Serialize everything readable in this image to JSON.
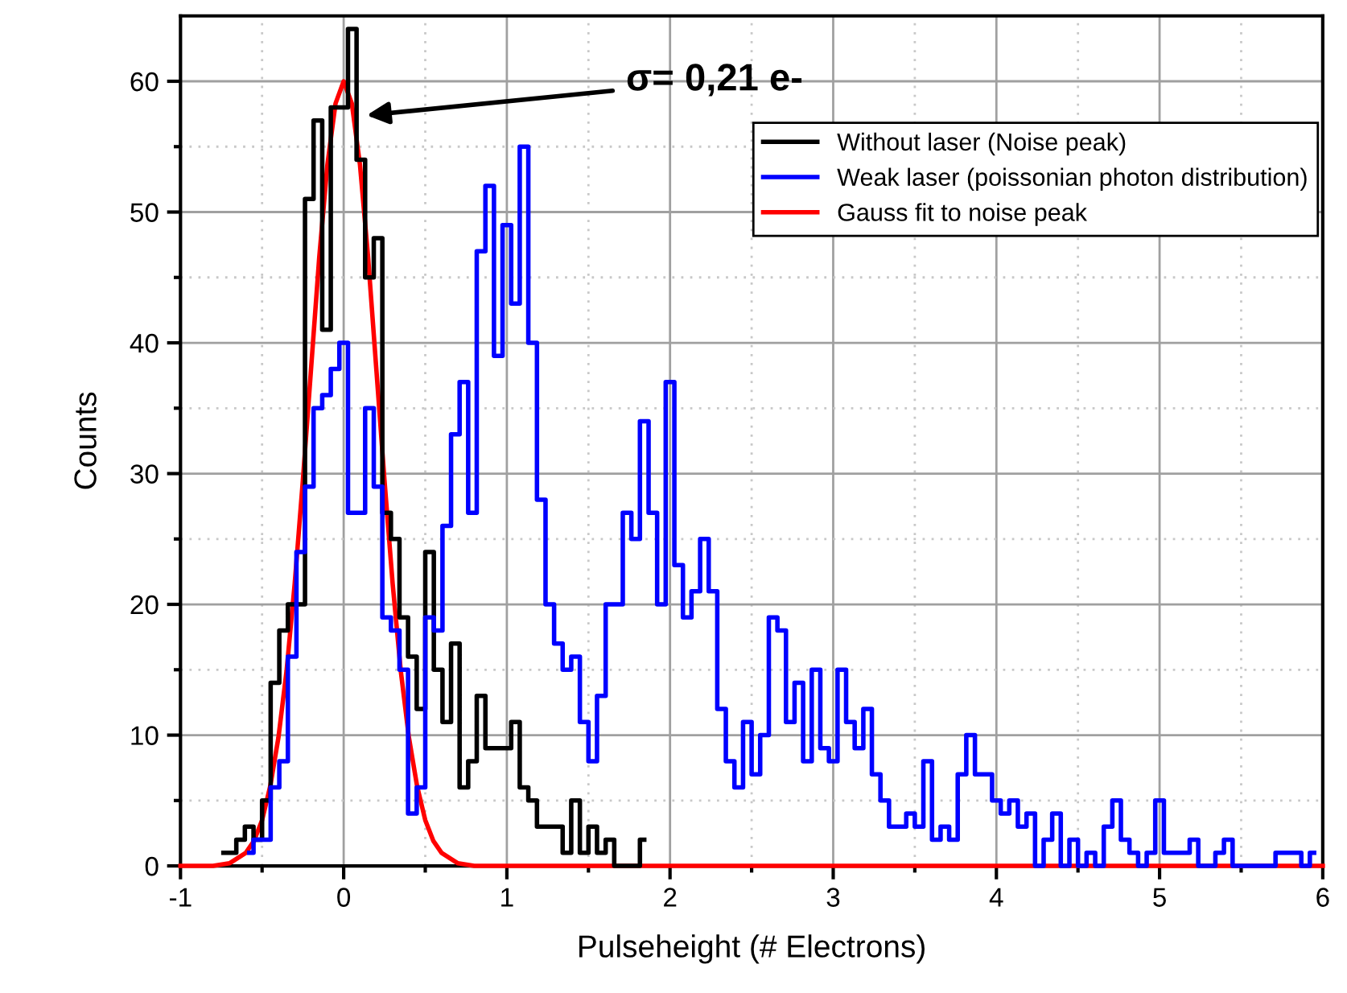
{
  "chart_data": {
    "type": "step",
    "xlabel": "Pulseheight (# Electrons)",
    "ylabel": "Counts",
    "series": [
      {
        "name": "Gauss fit to noise peak",
        "type": "line",
        "color": "#ff0000",
        "x": [
          -1,
          -0.8,
          -0.7,
          -0.6,
          -0.55,
          -0.5,
          -0.45,
          -0.4,
          -0.35,
          -0.3,
          -0.25,
          -0.2,
          -0.15,
          -0.1,
          -0.05,
          0,
          0.05,
          0.1,
          0.15,
          0.2,
          0.25,
          0.3,
          0.35,
          0.4,
          0.45,
          0.5,
          0.55,
          0.6,
          0.7,
          0.8,
          6
        ],
        "values": [
          0,
          0,
          0.2,
          1.0,
          1.9,
          3.5,
          6.1,
          9.8,
          14.9,
          21.6,
          29.5,
          38,
          46.5,
          53.6,
          58.3,
          60,
          58.3,
          53.6,
          46.5,
          38,
          29.5,
          21.6,
          14.9,
          9.8,
          6.1,
          3.5,
          1.9,
          1.0,
          0.2,
          0,
          0
        ]
      },
      {
        "name": "Without laser (Noise peak)",
        "color": "#000000",
        "x": [
          -0.737,
          -0.684,
          -0.632,
          -0.579,
          -0.526,
          -0.474,
          -0.421,
          -0.368,
          -0.316,
          -0.263,
          -0.211,
          -0.158,
          -0.105,
          -0.053,
          0,
          0.053,
          0.105,
          0.158,
          0.211,
          0.263,
          0.316,
          0.368,
          0.421,
          0.474,
          0.526,
          0.579,
          0.632,
          0.684,
          0.737,
          0.789,
          0.842,
          0.895,
          0.947,
          1,
          1.053,
          1.105,
          1.158,
          1.211,
          1.263,
          1.316,
          1.368,
          1.421,
          1.474,
          1.526,
          1.579,
          1.632,
          1.684,
          1.737,
          1.789,
          1.842
        ],
        "values": [
          1,
          1,
          2,
          3,
          2,
          5,
          14,
          18,
          20,
          20,
          51,
          57,
          41,
          58,
          58,
          64,
          54,
          45,
          48,
          27,
          25,
          19,
          16,
          12,
          24,
          15,
          11,
          17,
          6,
          8,
          13,
          9,
          9,
          9,
          11,
          6,
          5,
          3,
          3,
          3,
          1,
          5,
          1,
          3,
          1,
          2,
          0,
          0,
          0,
          2
        ]
      },
      {
        "name": "Weak laser (poissonian photon distribution)",
        "color": "#0000ff",
        "x": [
          -0.579,
          -0.526,
          -0.474,
          -0.421,
          -0.368,
          -0.316,
          -0.263,
          -0.211,
          -0.158,
          -0.105,
          -0.053,
          0,
          0.053,
          0.105,
          0.158,
          0.211,
          0.263,
          0.316,
          0.368,
          0.421,
          0.474,
          0.526,
          0.579,
          0.632,
          0.684,
          0.737,
          0.789,
          0.842,
          0.895,
          0.947,
          1,
          1.053,
          1.105,
          1.158,
          1.211,
          1.263,
          1.316,
          1.368,
          1.421,
          1.474,
          1.526,
          1.579,
          1.632,
          1.684,
          1.737,
          1.789,
          1.842,
          1.895,
          1.947,
          2,
          2.053,
          2.105,
          2.158,
          2.211,
          2.263,
          2.316,
          2.368,
          2.421,
          2.474,
          2.526,
          2.579,
          2.632,
          2.684,
          2.737,
          2.789,
          2.842,
          2.895,
          2.947,
          3,
          3.053,
          3.105,
          3.158,
          3.211,
          3.263,
          3.316,
          3.368,
          3.421,
          3.474,
          3.526,
          3.579,
          3.632,
          3.684,
          3.737,
          3.789,
          3.842,
          3.895,
          3.947,
          4,
          4.053,
          4.105,
          4.158,
          4.211,
          4.263,
          4.316,
          4.368,
          4.421,
          4.474,
          4.526,
          4.579,
          4.632,
          4.684,
          4.737,
          4.789,
          4.842,
          4.895,
          4.947,
          5,
          5.053,
          5.105,
          5.158,
          5.211,
          5.263,
          5.316,
          5.368,
          5.421,
          5.474,
          5.526,
          5.579,
          5.632,
          5.684,
          5.737,
          5.789,
          5.842,
          5.895,
          5.947
        ],
        "values": [
          1,
          2,
          2,
          6,
          8,
          16,
          24,
          29,
          35,
          36,
          38,
          40,
          27,
          27,
          35,
          29,
          19,
          18,
          15,
          4,
          6,
          19,
          18,
          26,
          33,
          37,
          27,
          47,
          52,
          39,
          49,
          43,
          55,
          40,
          28,
          20,
          17,
          15,
          16,
          11,
          8,
          13,
          20,
          20,
          27,
          25,
          34,
          27,
          20,
          37,
          23,
          19,
          21,
          25,
          21,
          12,
          8,
          6,
          11,
          7,
          10,
          19,
          18,
          11,
          14,
          8,
          15,
          9,
          8,
          15,
          11,
          9,
          12,
          7,
          5,
          3,
          3,
          4,
          3,
          8,
          2,
          3,
          2,
          7,
          10,
          7,
          7,
          5,
          4,
          5,
          3,
          4,
          0,
          2,
          4,
          0,
          2,
          0,
          1,
          0,
          3,
          5,
          2,
          1,
          0,
          1,
          5,
          1,
          1,
          1,
          2,
          0,
          0,
          1,
          2,
          0,
          0,
          0,
          0,
          0,
          1,
          1,
          1,
          0,
          1
        ]
      }
    ],
    "annotations": [
      "σ= 0,21 e-"
    ],
    "xlim": [
      -1,
      6
    ],
    "xticks": [
      -1,
      0,
      1,
      2,
      3,
      4,
      5,
      6
    ],
    "ylim": [
      0,
      65
    ],
    "yticks": [
      0,
      10,
      20,
      30,
      40,
      50,
      60
    ],
    "grid": true,
    "legend": "top right"
  }
}
